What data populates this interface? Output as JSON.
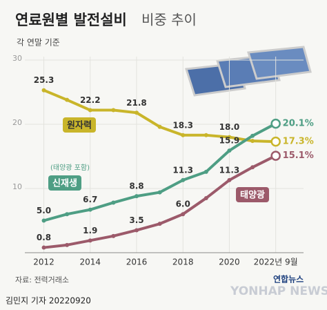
{
  "chart_data": {
    "type": "line",
    "title": "연료원별 발전설비",
    "subtitle": "비중 추이",
    "unit_note": "각 연말 기준",
    "annotation": "(태양광 포함)",
    "source": "자료: 전력거래소",
    "credit": "김민지 기자 20220920",
    "agency": "연합뉴스",
    "watermark": "YONHAP NEWS",
    "x": [
      2012,
      2013,
      2014,
      2015,
      2016,
      2017,
      2018,
      2019,
      2020,
      2021,
      2022
    ],
    "xlim": [
      2011.3,
      2023.2
    ],
    "xticks": [
      2012,
      2014,
      2016,
      2018,
      2020,
      {
        "value": 2022,
        "label": "2022년 9월"
      }
    ],
    "ylim": [
      0,
      30
    ],
    "yticks": [
      10,
      20,
      30
    ],
    "grid": true,
    "series": [
      {
        "name": "원자력",
        "color": "#c9b52a",
        "values": [
          25.3,
          23.8,
          22.2,
          22.2,
          21.8,
          19.6,
          18.3,
          18.3,
          18.0,
          17.4,
          17.3
        ],
        "value_labels": [
          "25.3",
          null,
          "22.2",
          null,
          "21.8",
          null,
          "18.3",
          null,
          "18.0",
          null,
          "17.3%"
        ]
      },
      {
        "name": "신재생",
        "color": "#4e9e84",
        "values": [
          5.0,
          6.0,
          6.7,
          7.8,
          8.8,
          9.4,
          11.3,
          12.6,
          15.9,
          18.2,
          20.1
        ],
        "value_labels": [
          "5.0",
          null,
          "6.7",
          null,
          "8.8",
          null,
          "11.3",
          null,
          "15.9",
          null,
          "20.1%"
        ]
      },
      {
        "name": "태양광",
        "color": "#9c5a6a",
        "values": [
          0.8,
          1.2,
          1.9,
          2.6,
          3.5,
          4.5,
          6.0,
          8.5,
          11.3,
          13.3,
          15.1
        ],
        "value_labels": [
          "0.8",
          null,
          "1.9",
          null,
          "3.5",
          null,
          "6.0",
          null,
          "11.3",
          null,
          "15.1%"
        ]
      }
    ]
  }
}
